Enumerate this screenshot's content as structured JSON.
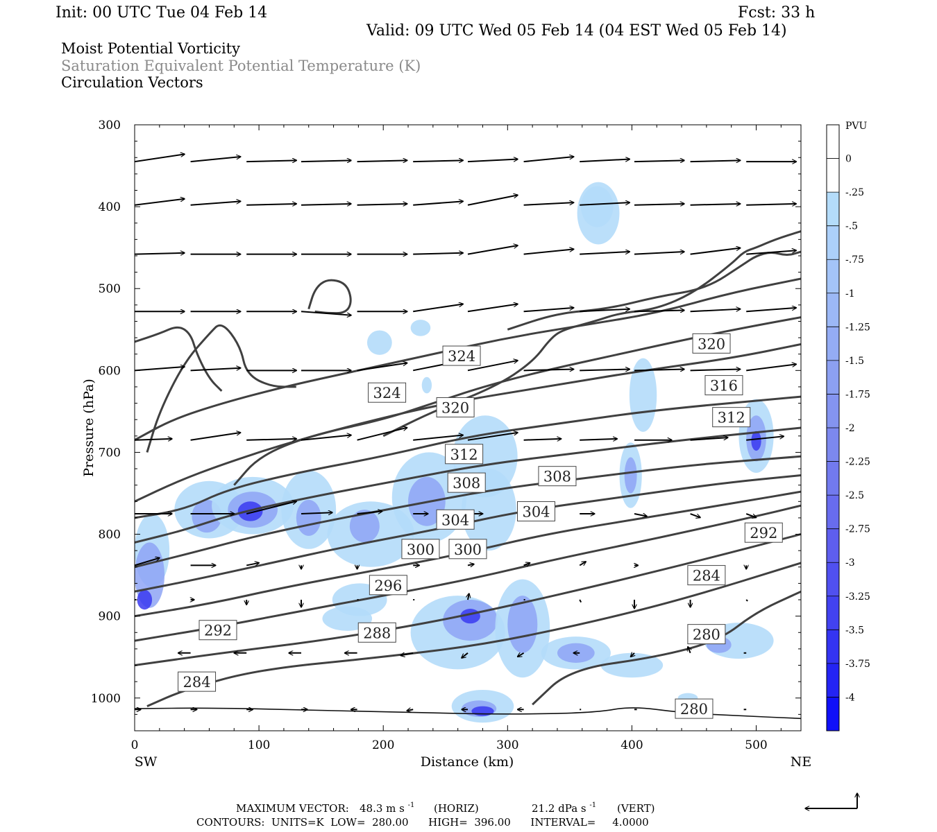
{
  "header": {
    "init": "Init: 00 UTC Tue 04 Feb 14",
    "fcst": "Fcst:   33 h",
    "valid": "Valid: 09 UTC Wed 05 Feb 14 (04 EST Wed 05 Feb 14)",
    "field1": "Moist Potential Vorticity",
    "field2": "Saturation Equivalent Potential Temperature (K)",
    "field3": "Circulation Vectors"
  },
  "footer": {
    "max_vector_label": "MAXIMUM VECTOR:",
    "max_vector_horiz": "48.3 m s",
    "horiz_label": "(HORIZ)",
    "max_vector_vert": "21.2 dPa s",
    "vert_label": "(VERT)",
    "sup": "-1",
    "contours": "CONTOURS:  UNITS=K  LOW=  280.00      HIGH=  396.00      INTERVAL=     4.0000"
  },
  "chart_data": {
    "type": "cross-section",
    "xlabel": "Distance (km)",
    "ylabel": "Pressure (hPa)",
    "xlim": [
      0,
      536
    ],
    "ylim": [
      1040,
      300
    ],
    "x_ticks": [
      0,
      100,
      200,
      300,
      400,
      500
    ],
    "y_ticks": [
      300,
      400,
      500,
      600,
      700,
      800,
      900,
      1000
    ],
    "x_end_labels": {
      "left": "SW",
      "right": "NE"
    },
    "colors": {
      "frame": "#000000",
      "contour": "#404040",
      "shade_light": "#b4dcfa",
      "shade_mid": "#8ea4f4",
      "shade_dark": "#3a3af0"
    },
    "colorbar": {
      "unit": "PVU",
      "labels": [
        "0",
        "-.25",
        "-.5",
        "-.75",
        "-1",
        "-1.25",
        "-1.5",
        "-1.75",
        "-2",
        "-2.25",
        "-2.5",
        "-2.75",
        "-3",
        "-3.25",
        "-3.5",
        "-3.75",
        "-4"
      ],
      "colors": [
        "#ffffff",
        "#ffffff",
        "#b4dcfa",
        "#acd0fa",
        "#a4c4f8",
        "#9cb8f6",
        "#94acf4",
        "#8ca0f2",
        "#8494f0",
        "#7c88ee",
        "#727aee",
        "#686cee",
        "#5e5eee",
        "#5050f0",
        "#4242f0",
        "#3434f2",
        "#2424f4",
        "#1010f8"
      ]
    },
    "contour_labels": [
      {
        "text": "324",
        "x": 263,
        "p": 582
      },
      {
        "text": "324",
        "x": 203,
        "p": 627
      },
      {
        "text": "320",
        "x": 258,
        "p": 645
      },
      {
        "text": "320",
        "x": 464,
        "p": 567
      },
      {
        "text": "316",
        "x": 474,
        "p": 618
      },
      {
        "text": "312",
        "x": 265,
        "p": 702
      },
      {
        "text": "312",
        "x": 480,
        "p": 657
      },
      {
        "text": "308",
        "x": 267,
        "p": 737
      },
      {
        "text": "308",
        "x": 340,
        "p": 729
      },
      {
        "text": "304",
        "x": 258,
        "p": 782
      },
      {
        "text": "304",
        "x": 323,
        "p": 772
      },
      {
        "text": "300",
        "x": 230,
        "p": 818
      },
      {
        "text": "300",
        "x": 268,
        "p": 818
      },
      {
        "text": "296",
        "x": 204,
        "p": 862
      },
      {
        "text": "292",
        "x": 506,
        "p": 798
      },
      {
        "text": "292",
        "x": 67,
        "p": 917
      },
      {
        "text": "288",
        "x": 195,
        "p": 920
      },
      {
        "text": "284",
        "x": 460,
        "p": 850
      },
      {
        "text": "284",
        "x": 50,
        "p": 980
      },
      {
        "text": "280",
        "x": 460,
        "p": 922
      },
      {
        "text": "280",
        "x": 450,
        "p": 1013
      }
    ]
  }
}
